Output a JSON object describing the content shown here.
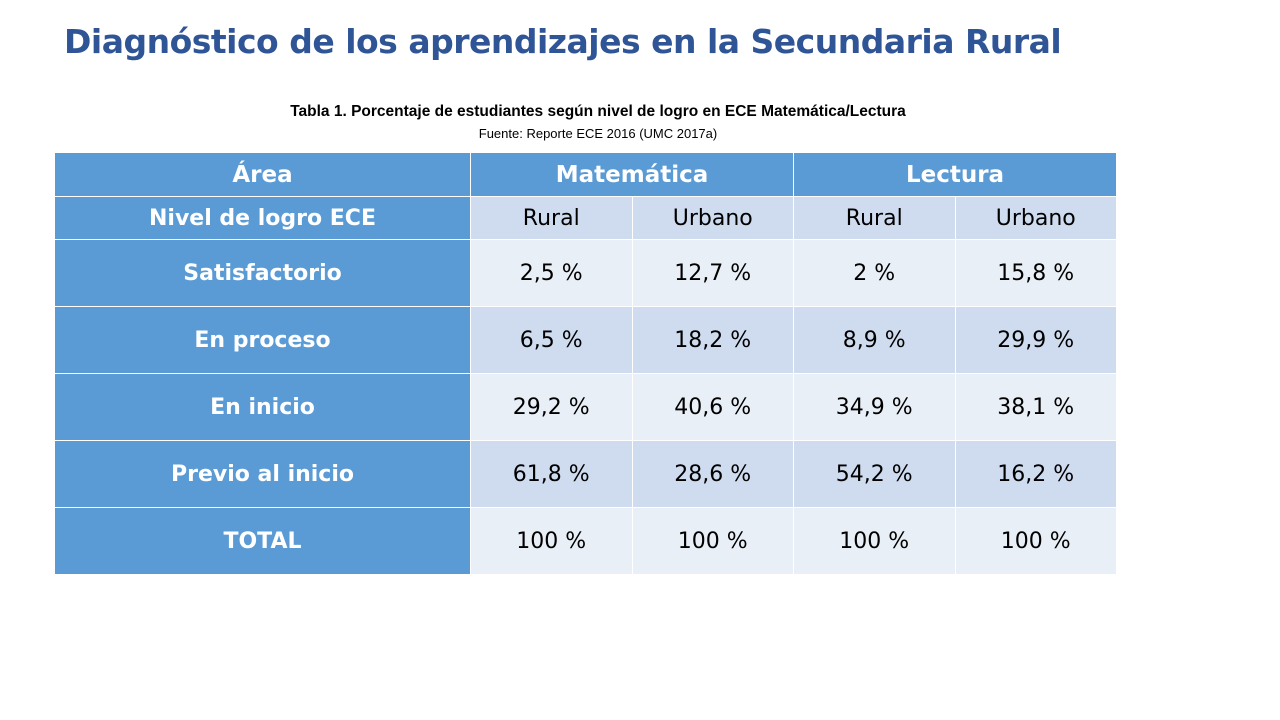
{
  "slide": {
    "title": "Diagnóstico de los aprendizajes en la Secundaria Rural"
  },
  "table_caption": {
    "title": "Tabla 1. Porcentaje  de estudiantes según nivel de logro en ECE Matemática/Lectura",
    "source": "Fuente: Reporte ECE 2016 (UMC 2017a)"
  },
  "table": {
    "header": {
      "area_label": "Área",
      "groups": [
        "Matemática",
        "Lectura"
      ]
    },
    "subheader": {
      "label": "Nivel de logro ECE",
      "columns": [
        "Rural",
        "Urbano",
        "Rural",
        "Urbano"
      ]
    },
    "rows": [
      {
        "label": "Satisfactorio",
        "values": [
          "2,5 %",
          "12,7 %",
          "2 %",
          "15,8 %"
        ]
      },
      {
        "label": "En proceso",
        "values": [
          "6,5 %",
          "18,2 %",
          "8,9 %",
          "29,9 %"
        ]
      },
      {
        "label": "En inicio",
        "values": [
          "29,2 %",
          "40,6 %",
          "34,9 %",
          "38,1 %"
        ]
      },
      {
        "label": "Previo al inicio",
        "values": [
          "61,8 %",
          "28,6 %",
          "54,2 %",
          "16,2 %"
        ]
      },
      {
        "label": "TOTAL",
        "values": [
          "100 %",
          "100 %",
          "100 %",
          "100 %"
        ]
      }
    ]
  },
  "colors": {
    "title": "#2f5597",
    "header_fill": "#5b9bd5",
    "row_light": "#e9eff7",
    "row_dark": "#cfdcef"
  }
}
